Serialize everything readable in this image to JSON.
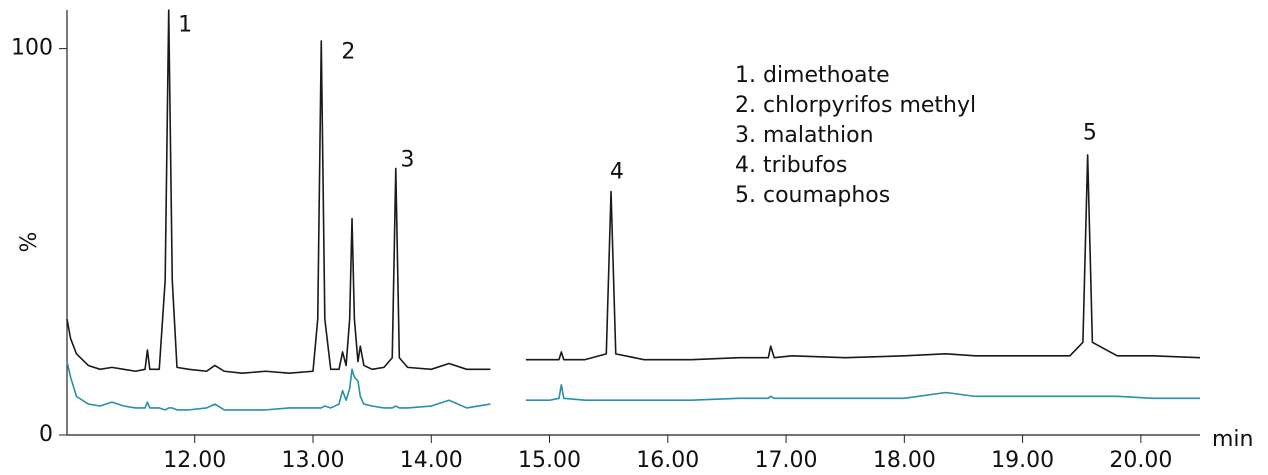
{
  "chart_data": {
    "type": "line",
    "x_label": "min",
    "y_label": "%",
    "xlim": [
      10.92,
      20.5
    ],
    "ylim": [
      0,
      110
    ],
    "xticks": [
      {
        "value": 12,
        "label": "12.00"
      },
      {
        "value": 13,
        "label": "13.00"
      },
      {
        "value": 14,
        "label": "14.00"
      },
      {
        "value": 15,
        "label": "15.00"
      },
      {
        "value": 16,
        "label": "16.00"
      },
      {
        "value": 17,
        "label": "17.00"
      },
      {
        "value": 18,
        "label": "18.00"
      },
      {
        "value": 19,
        "label": "19.00"
      },
      {
        "value": 20,
        "label": "20.00"
      }
    ],
    "yticks": [
      0,
      100
    ],
    "compounds": [
      "1. dimethoate",
      "2. chlorpyrifos methyl",
      "3. malathion",
      "4. tribufos",
      "5. coumaphos"
    ],
    "peak_labels": [
      {
        "label": "1",
        "x": 11.86,
        "y": 106
      },
      {
        "label": "2",
        "x": 13.24,
        "y": 99
      },
      {
        "label": "3",
        "x": 13.74,
        "y": 71
      },
      {
        "label": "4",
        "x": 15.51,
        "y": 68
      },
      {
        "label": "5",
        "x": 19.51,
        "y": 78
      }
    ],
    "x": [
      10.92,
      10.95,
      11.0,
      11.1,
      11.2,
      11.3,
      11.4,
      11.5,
      11.58,
      11.6,
      11.62,
      11.7,
      11.75,
      11.78,
      11.81,
      11.85,
      11.95,
      12.1,
      12.17,
      12.25,
      12.4,
      12.6,
      12.8,
      13.0,
      13.04,
      13.07,
      13.1,
      13.15,
      13.22,
      13.25,
      13.28,
      13.31,
      13.33,
      13.35,
      13.38,
      13.4,
      13.43,
      13.5,
      13.6,
      13.67,
      13.7,
      13.73,
      13.8,
      14.0,
      14.15,
      14.3,
      14.5,
      14.65,
      14.8,
      15.0,
      15.08,
      15.1,
      15.12,
      15.3,
      15.48,
      15.52,
      15.56,
      15.8,
      16.2,
      16.6,
      16.85,
      16.87,
      16.9,
      17.05,
      17.5,
      18.0,
      18.35,
      18.6,
      19.0,
      19.4,
      19.51,
      19.55,
      19.59,
      19.8,
      20.1,
      20.5
    ],
    "series": [
      {
        "color": "#1a1a1a",
        "values": [
          30,
          25,
          21,
          18,
          17,
          17.5,
          17,
          16.5,
          17,
          22,
          17,
          17,
          40,
          110,
          40,
          17.5,
          17,
          16.5,
          18,
          16.5,
          16,
          16.5,
          16,
          16.5,
          30,
          102,
          30,
          17,
          17,
          21.5,
          18,
          30,
          56,
          30,
          19,
          23,
          18,
          17,
          17.5,
          20,
          69,
          20,
          17.5,
          17,
          18.5,
          17,
          17,
          null,
          19.5,
          19.5,
          19.5,
          21.5,
          19.5,
          19.5,
          21,
          63,
          21,
          19.5,
          19.5,
          20,
          20,
          23,
          20,
          20.5,
          20,
          20.5,
          21,
          20.5,
          20.5,
          20.5,
          24,
          72.5,
          24,
          20.5,
          20.5,
          20
        ]
      },
      {
        "color": "#2a8fa8",
        "values": [
          19,
          15,
          10,
          8,
          7.5,
          8.5,
          7.5,
          7,
          7,
          8.5,
          7,
          7,
          6.5,
          7,
          7,
          6.5,
          6.5,
          7,
          8,
          6.5,
          6.5,
          6.5,
          7,
          7,
          7,
          7,
          7.5,
          7,
          8,
          11.5,
          9,
          12,
          17,
          15,
          14,
          10,
          8,
          7.5,
          7,
          7,
          7.5,
          7,
          7,
          7.5,
          9,
          7,
          8,
          null,
          9,
          9,
          9.5,
          13,
          9.5,
          9,
          9,
          9,
          9,
          9,
          9,
          9.5,
          9.5,
          10,
          9.5,
          9.5,
          9.5,
          9.5,
          11,
          10,
          10,
          10,
          10,
          10,
          10,
          10,
          9.5,
          9.5
        ]
      }
    ]
  }
}
